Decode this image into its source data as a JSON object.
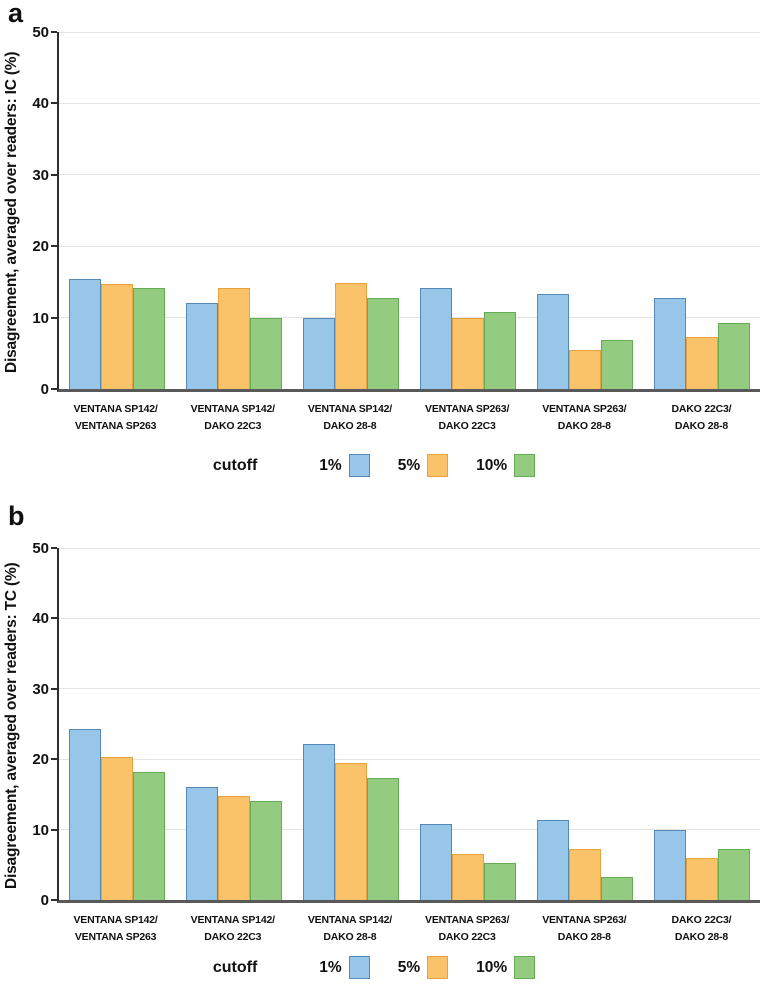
{
  "page": {
    "background": "#ffffff"
  },
  "chart_data": [
    {
      "type": "bar",
      "panel_label": "a",
      "title": "",
      "xlabel": "",
      "ylabel": "Disagreement, averaged over readers: IC (%)",
      "ylim": [
        0,
        50
      ],
      "yticks": [
        0,
        10,
        20,
        30,
        40,
        50
      ],
      "grid": true,
      "legend_position": "bottom",
      "legend_title": "cutoff",
      "categories": [
        [
          "VENTANA SP142/",
          "VENTANA SP263"
        ],
        [
          "VENTANA SP142/",
          "DAKO 22C3"
        ],
        [
          "VENTANA SP142/",
          "DAKO 28-8"
        ],
        [
          "VENTANA SP263/",
          "DAKO 22C3"
        ],
        [
          "VENTANA SP263/",
          "DAKO 28-8"
        ],
        [
          "DAKO 22C3/",
          "DAKO 28-8"
        ]
      ],
      "series": [
        {
          "name": "1%",
          "fill": "#97C6E8",
          "border": "#5489B8",
          "values": [
            15.4,
            12.1,
            10.0,
            14.1,
            13.3,
            12.7
          ]
        },
        {
          "name": "5%",
          "fill": "#FAC369",
          "border": "#E8A23D",
          "values": [
            14.7,
            14.1,
            14.8,
            10.0,
            5.4,
            7.3
          ]
        },
        {
          "name": "10%",
          "fill": "#93CB80",
          "border": "#63AD55",
          "values": [
            14.2,
            10.0,
            12.7,
            10.8,
            6.8,
            9.3
          ]
        }
      ]
    },
    {
      "type": "bar",
      "panel_label": "b",
      "title": "",
      "xlabel": "",
      "ylabel": "Disagreement, averaged over readers: TC (%)",
      "ylim": [
        0,
        50
      ],
      "yticks": [
        0,
        10,
        20,
        30,
        40,
        50
      ],
      "grid": true,
      "legend_position": "bottom",
      "legend_title": "cutoff",
      "categories": [
        [
          "VENTANA SP142/",
          "VENTANA SP263"
        ],
        [
          "VENTANA SP142/",
          "DAKO 22C3"
        ],
        [
          "VENTANA SP142/",
          "DAKO 28-8"
        ],
        [
          "VENTANA SP263/",
          "DAKO 22C3"
        ],
        [
          "VENTANA SP263/",
          "DAKO 28-8"
        ],
        [
          "DAKO 22C3/",
          "DAKO 28-8"
        ]
      ],
      "series": [
        {
          "name": "1%",
          "fill": "#97C6E8",
          "border": "#5489B8",
          "values": [
            24.3,
            16.0,
            22.2,
            10.8,
            11.3,
            10.0
          ]
        },
        {
          "name": "5%",
          "fill": "#FAC369",
          "border": "#E8A23D",
          "values": [
            20.3,
            14.8,
            19.4,
            6.5,
            7.3,
            5.9
          ]
        },
        {
          "name": "10%",
          "fill": "#93CB80",
          "border": "#63AD55",
          "values": [
            18.2,
            14.0,
            17.4,
            5.2,
            3.2,
            7.2
          ]
        }
      ]
    }
  ]
}
